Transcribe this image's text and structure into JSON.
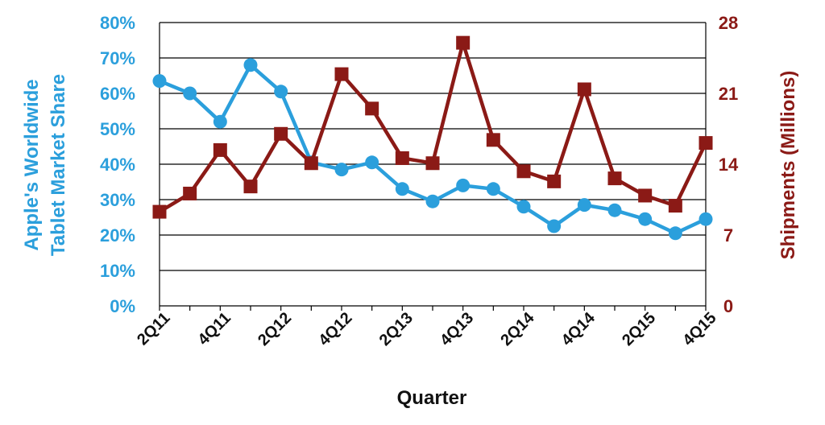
{
  "colors": {
    "market_share": "#2b9fdc",
    "shipments": "#8b1a16",
    "grid": "#000000",
    "text": "#111111"
  },
  "chart_data": {
    "type": "line",
    "xlabel": "Quarter",
    "ylabel_left": "Apple's Worldwide Tablet Market Share",
    "ylabel_left_lines": [
      "Apple's Worldwide",
      "Tablet Market Share"
    ],
    "ylabel_right": "Shipments (Millions)",
    "x": [
      "2Q11",
      "3Q11",
      "4Q11",
      "1Q12",
      "2Q12",
      "3Q12",
      "4Q12",
      "1Q13",
      "2Q13",
      "3Q13",
      "4Q13",
      "1Q14",
      "2Q14",
      "3Q14",
      "4Q14",
      "1Q15",
      "2Q15",
      "3Q15",
      "4Q15"
    ],
    "x_tick_labels": [
      "2Q11",
      "",
      "4Q11",
      "",
      "2Q12",
      "",
      "4Q12",
      "",
      "2Q13",
      "",
      "4Q13",
      "",
      "2Q14",
      "",
      "4Q14",
      "",
      "2Q15",
      "",
      "4Q15"
    ],
    "ylim_left": [
      0,
      80
    ],
    "yticks_left": [
      "0%",
      "10%",
      "20%",
      "30%",
      "40%",
      "50%",
      "60%",
      "70%",
      "80%"
    ],
    "ylim_right": [
      0,
      28
    ],
    "yticks_right": [
      "0",
      "7",
      "14",
      "21",
      "28"
    ],
    "grid": true,
    "legend": "none",
    "series": [
      {
        "name": "Apple's Worldwide Tablet Market Share",
        "axis": "left",
        "marker": "circle",
        "values": [
          63.5,
          60,
          52,
          68,
          60.5,
          40.5,
          38.5,
          40.5,
          33,
          29.5,
          34,
          33,
          28,
          22.5,
          28.5,
          27,
          24.5,
          20.5,
          24.5
        ]
      },
      {
        "name": "Shipments (Millions)",
        "axis": "right",
        "marker": "square",
        "values": [
          9.3,
          11.1,
          15.4,
          11.8,
          17.0,
          14.1,
          22.9,
          19.5,
          14.6,
          14.1,
          26.0,
          16.4,
          13.3,
          12.3,
          21.4,
          12.6,
          10.9,
          9.9,
          16.1
        ]
      }
    ]
  }
}
